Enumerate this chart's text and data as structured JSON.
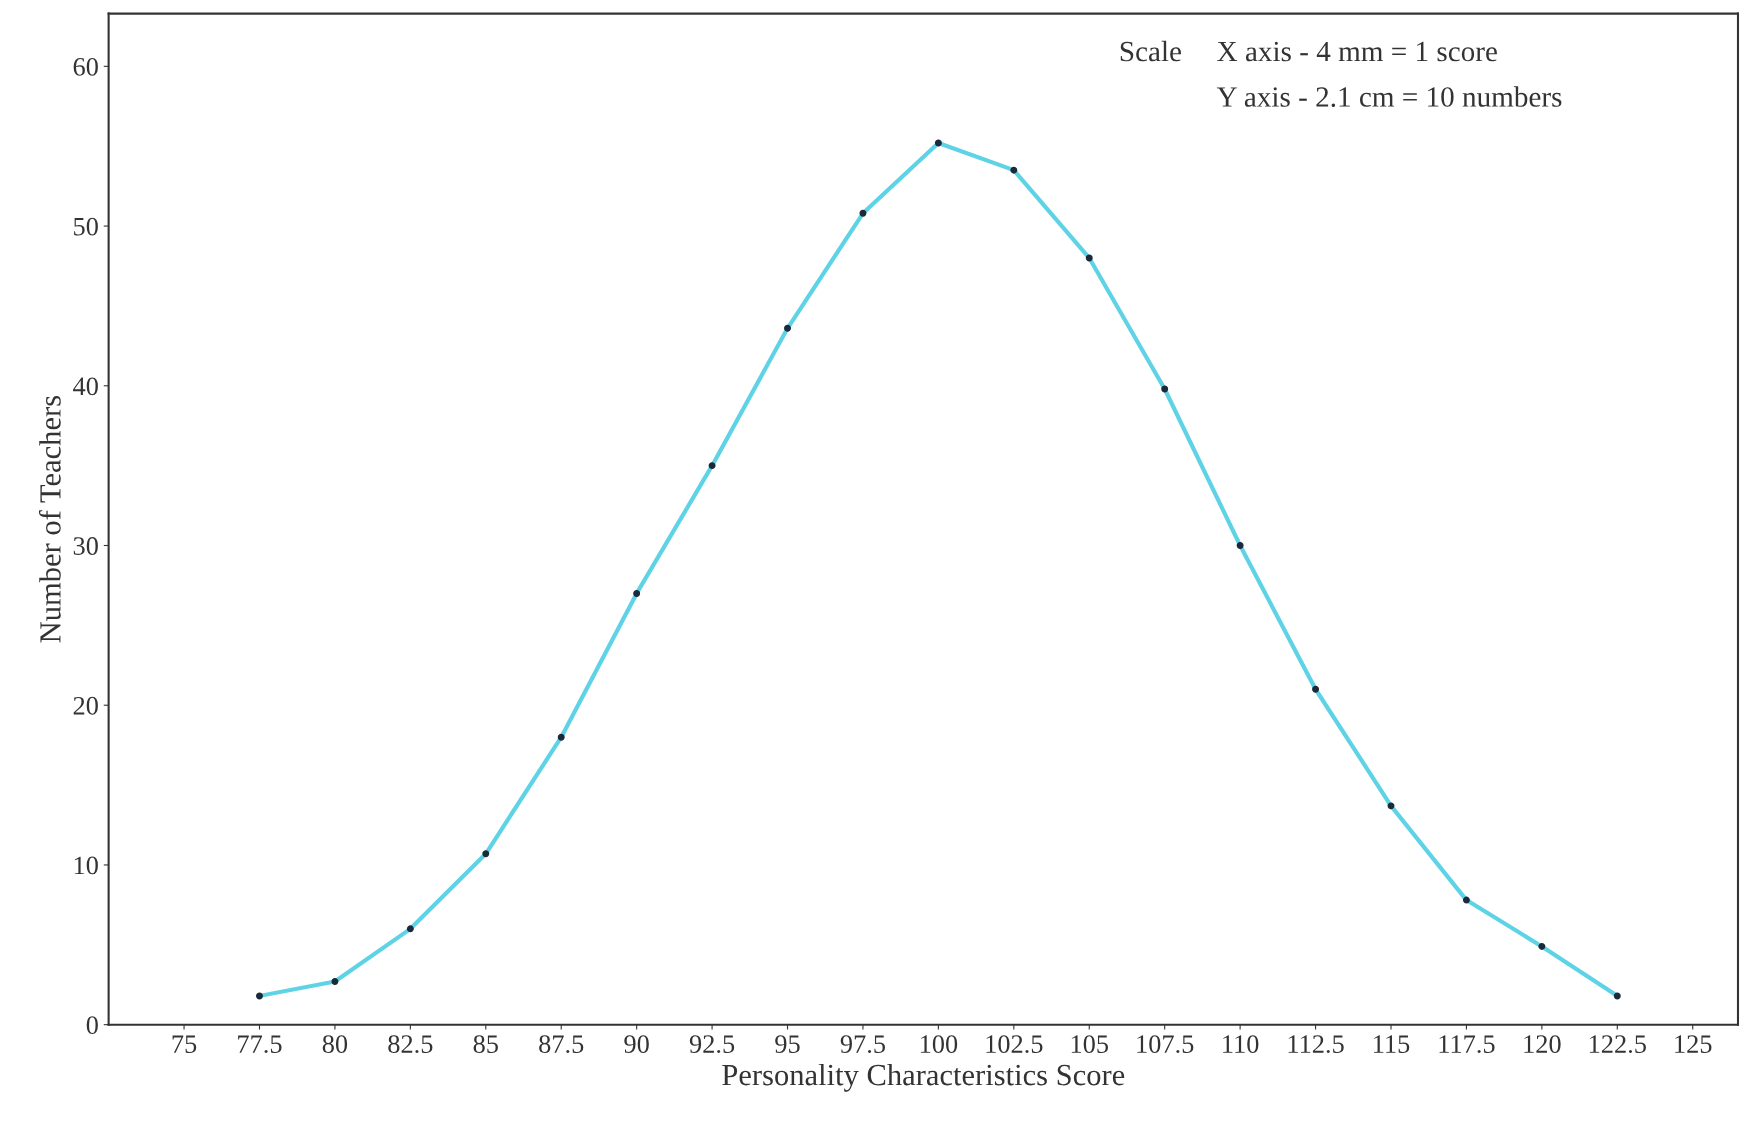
{
  "chart_data": {
    "type": "line",
    "xlabel": "Personality Characteristics Score",
    "ylabel": "Number of Teachers",
    "annotations": [
      "Scale",
      "X axis - 4 mm = 1 score",
      "Y axis - 2.1 cm = 10 numbers"
    ],
    "x": [
      77.5,
      80,
      82.5,
      85,
      87.5,
      90,
      92.5,
      95,
      97.5,
      100,
      102.5,
      105,
      107.5,
      110,
      112.5,
      115,
      117.5,
      120,
      122.5
    ],
    "series": [
      {
        "color": "#5fd3e6",
        "values": [
          1.8,
          2.7,
          6,
          10.7,
          18,
          27,
          35,
          43.6,
          50.8,
          55.2,
          53.5,
          48,
          39.8,
          30,
          21,
          13.7,
          7.8,
          4.9,
          1.8
        ]
      }
    ],
    "xlim": [
      72.5,
      126.5
    ],
    "xticks": [
      75,
      77.5,
      80,
      82.5,
      85,
      87.5,
      90,
      92.5,
      95,
      97.5,
      100,
      102.5,
      105,
      107.5,
      110,
      112.5,
      115,
      117.5,
      120,
      122.5,
      125
    ],
    "ylim": [
      0,
      63.3
    ],
    "yticks": [
      0,
      10,
      20,
      30,
      40,
      50,
      60
    ],
    "marker": "circle",
    "line_style": "solid",
    "grid": false,
    "legend": false
  }
}
